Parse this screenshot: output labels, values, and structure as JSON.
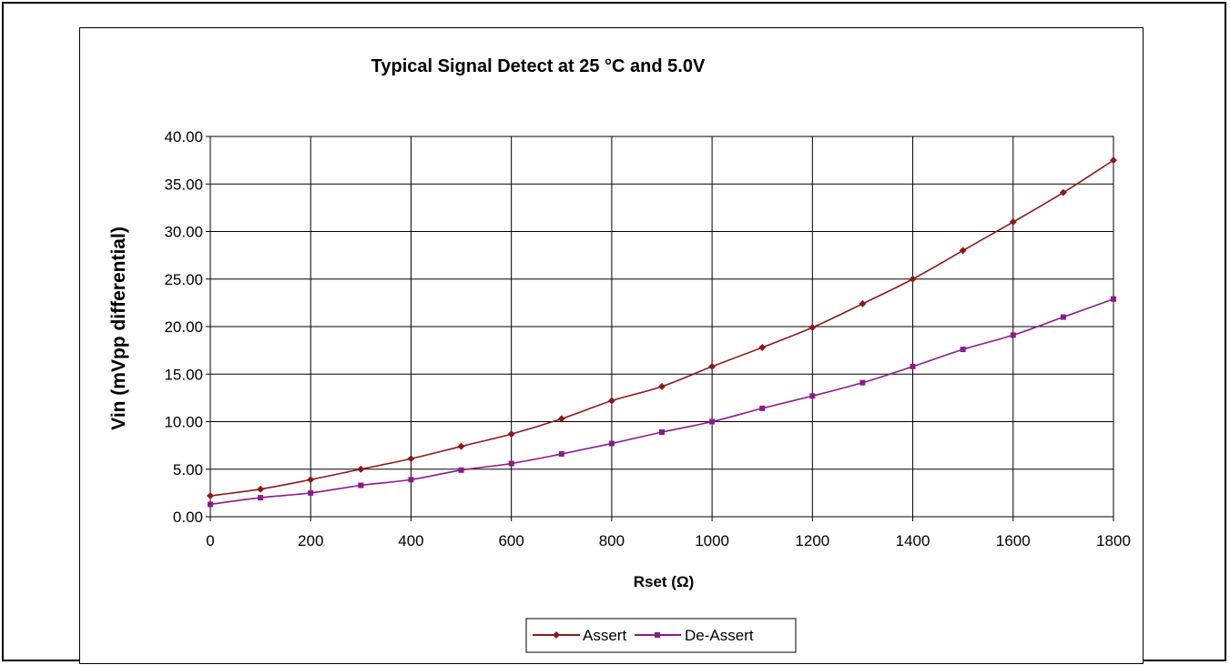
{
  "chart_data": {
    "type": "line",
    "title": "Typical Signal Detect at 25 °C and 5.0V",
    "xlabel": "Rset (Ω)",
    "ylabel": "Vin (mVpp differential)",
    "xlim": [
      0,
      1800
    ],
    "ylim": [
      0,
      40
    ],
    "x_ticks": [
      "0",
      "200",
      "400",
      "600",
      "800",
      "1000",
      "1200",
      "1400",
      "1600",
      "1800"
    ],
    "y_ticks": [
      "0.00",
      "5.00",
      "10.00",
      "15.00",
      "20.00",
      "25.00",
      "30.00",
      "35.00",
      "40.00"
    ],
    "grid": true,
    "legend_position": "bottom",
    "x": [
      0,
      100,
      200,
      300,
      400,
      500,
      600,
      700,
      800,
      900,
      1000,
      1100,
      1200,
      1300,
      1400,
      1500,
      1600,
      1700,
      1800
    ],
    "series": [
      {
        "name": "Assert",
        "color": "#8B1A1A",
        "marker": "diamond",
        "values": [
          2.2,
          2.9,
          3.9,
          5.0,
          6.1,
          7.4,
          8.7,
          10.3,
          12.2,
          13.7,
          15.8,
          17.8,
          19.9,
          22.4,
          25.0,
          28.0,
          31.0,
          34.1,
          37.5
        ]
      },
      {
        "name": "De-Assert",
        "color": "#8B1A8B",
        "marker": "square",
        "values": [
          1.3,
          2.0,
          2.5,
          3.3,
          3.9,
          4.9,
          5.6,
          6.6,
          7.7,
          8.9,
          10.0,
          11.4,
          12.7,
          14.1,
          15.8,
          17.6,
          19.1,
          21.0,
          22.9
        ]
      }
    ]
  }
}
